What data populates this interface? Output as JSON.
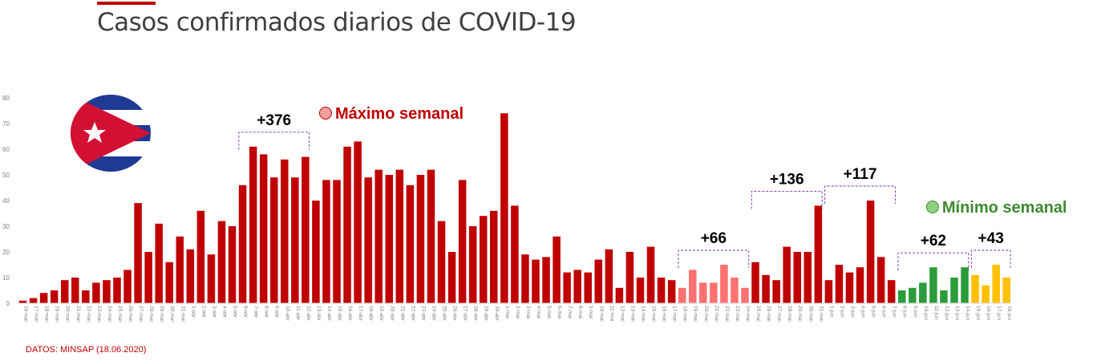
{
  "title": "Casos confirmados diarios de COVID-19",
  "source": "DATOS:  MINSAP (18.06.2020)",
  "colors": {
    "accent": "#c00000",
    "title": "#404040",
    "bar_main": "#c00000",
    "bar_low_may": "#ff7070",
    "bar_green": "#2a9d3a",
    "bar_yellow": "#ffc000",
    "axis_text": "#7f7f7f",
    "bracket": "#7030a0"
  },
  "flag": {
    "icon": "cuba-flag-icon"
  },
  "chart_data": {
    "type": "bar",
    "title": "Casos confirmados diarios de COVID-19",
    "xlabel": "",
    "ylabel": "",
    "ylim": [
      0,
      80
    ],
    "yticks": [
      0,
      10,
      20,
      30,
      40,
      50,
      60,
      70,
      80
    ],
    "grid": false,
    "categories": [
      "16-mar",
      "17-mar",
      "18-mar",
      "19-mar",
      "20-mar",
      "21-mar",
      "22-mar",
      "23-mar",
      "24-mar",
      "25-mar",
      "26-mar",
      "27-mar",
      "28-mar",
      "29-mar",
      "30-mar",
      "31-mar",
      "1-abr",
      "2-abr",
      "3-abr",
      "4-abr",
      "5-abr",
      "6-abr",
      "7-abr",
      "8-abr",
      "9-abr",
      "10-abr",
      "11-abr",
      "12-abr",
      "13-abr",
      "14-abr",
      "15-abr",
      "16-abr",
      "17-abr",
      "18-abr",
      "19-abr",
      "20-abr",
      "21-abr",
      "22-abr",
      "23-abr",
      "24-abr",
      "25-abr",
      "26-abr",
      "27-abr",
      "28-abr",
      "29-abr",
      "30-abr",
      "1-mai",
      "2-mai",
      "3-mai",
      "4-mai",
      "5-mai",
      "6-mai",
      "7-mai",
      "8-mai",
      "9-mai",
      "10-mai",
      "11-mai",
      "12-mai",
      "13-mai",
      "14-mai",
      "15-mai",
      "16-mai",
      "17-mai",
      "18-mai",
      "19-mai",
      "20-mai",
      "21-mai",
      "22-mai",
      "23-mai",
      "24-mai",
      "25-mai",
      "26-mai",
      "27-mai",
      "28-mai",
      "29-mai",
      "30-mai",
      "31-mai",
      "1-jun",
      "2-jun",
      "3-jun",
      "4-jun",
      "5-jun",
      "6-jun",
      "7-jun",
      "8-jun",
      "9-jun",
      "10-jun",
      "11-jun",
      "12-jun",
      "13-jun",
      "14-jun",
      "15-jun",
      "16-jun",
      "17-jun",
      "18-jun"
    ],
    "values": [
      1,
      2,
      4,
      5,
      9,
      10,
      5,
      8,
      9,
      10,
      13,
      39,
      20,
      31,
      16,
      26,
      21,
      36,
      19,
      32,
      30,
      46,
      61,
      58,
      49,
      56,
      49,
      57,
      40,
      48,
      48,
      61,
      63,
      49,
      52,
      50,
      52,
      46,
      50,
      52,
      32,
      20,
      48,
      30,
      34,
      36,
      74,
      38,
      19,
      17,
      18,
      26,
      12,
      13,
      12,
      17,
      21,
      6,
      20,
      10,
      22,
      10,
      9,
      6,
      13,
      8,
      8,
      15,
      10,
      6,
      16,
      11,
      9,
      22,
      20,
      20,
      38,
      9,
      15,
      12,
      14,
      40,
      18,
      9,
      5,
      6,
      8,
      14,
      5,
      10,
      14,
      11,
      7,
      15,
      10
    ],
    "bar_groups": [
      {
        "from": 0,
        "to": 62,
        "color_key": "bar_main"
      },
      {
        "from": 63,
        "to": 69,
        "color_key": "bar_low_may"
      },
      {
        "from": 70,
        "to": 83,
        "color_key": "bar_main"
      },
      {
        "from": 84,
        "to": 90,
        "color_key": "bar_green"
      },
      {
        "from": 91,
        "to": 94,
        "color_key": "bar_yellow"
      }
    ],
    "annotations": [
      {
        "label": "+376",
        "from": 21,
        "to": 27,
        "color": "#000000"
      },
      {
        "label": "+66",
        "from": 63,
        "to": 69,
        "color": "#000000"
      },
      {
        "label": "+136",
        "from": 70,
        "to": 76,
        "color": "#000000"
      },
      {
        "label": "+117",
        "from": 77,
        "to": 83,
        "color": "#000000"
      },
      {
        "label": "+62",
        "from": 84,
        "to": 90,
        "color": "#000000"
      },
      {
        "label": "+43",
        "from": 91,
        "to": 94,
        "color": "#000000"
      }
    ],
    "legend_notes": [
      {
        "label": "Máximo semanal",
        "color": "#c00000",
        "marker_fill": "#f4a0a0",
        "anchor_index": 29
      },
      {
        "label": "Mínimo semanal",
        "color": "#3c8a2e",
        "marker_fill": "#8fd07e",
        "anchor_index": 87
      }
    ]
  }
}
